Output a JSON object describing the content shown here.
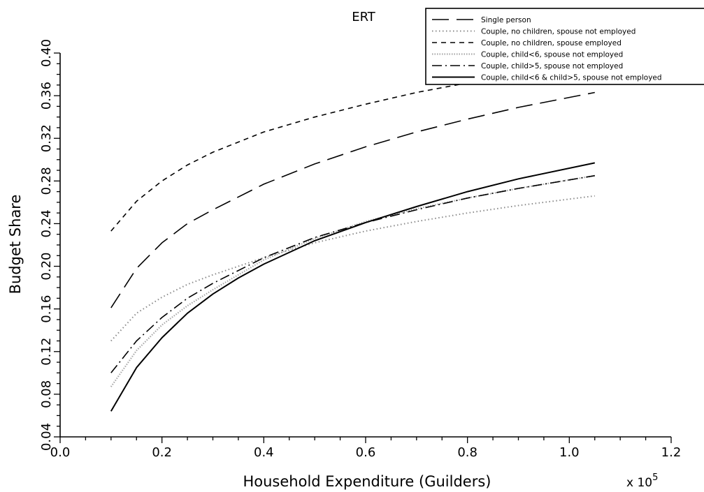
{
  "chart_data": {
    "type": "line",
    "title": "ERT",
    "xlabel": "Household Expenditure (Guilders)",
    "ylabel": "Budget Share",
    "x_multiplier": "x 10",
    "x_multiplier_exp": "5",
    "xlim": [
      0,
      1.2
    ],
    "ylim": [
      0.04,
      0.4
    ],
    "x_ticks": [
      "0.0",
      "0.2",
      "0.4",
      "0.6",
      "0.8",
      "1.0",
      "1.2"
    ],
    "y_ticks": [
      "0.04",
      "0.08",
      "0.12",
      "0.16",
      "0.20",
      "0.24",
      "0.28",
      "0.32",
      "0.36",
      "0.40"
    ],
    "grid": false,
    "legend_position": "top-right",
    "series": [
      {
        "name": "Single person",
        "style": "longdash",
        "x": [
          0.1,
          0.15,
          0.2,
          0.25,
          0.3,
          0.4,
          0.5,
          0.6,
          0.7,
          0.8,
          0.9,
          1.05
        ],
        "y": [
          0.161,
          0.198,
          0.222,
          0.24,
          0.253,
          0.277,
          0.296,
          0.312,
          0.326,
          0.338,
          0.349,
          0.363
        ]
      },
      {
        "name": "Couple, no children, spouse not employed",
        "style": "dotted",
        "x": [
          0.1,
          0.15,
          0.2,
          0.25,
          0.3,
          0.4,
          0.5,
          0.6,
          0.7,
          0.8,
          0.9,
          1.05
        ],
        "y": [
          0.13,
          0.156,
          0.171,
          0.183,
          0.192,
          0.208,
          0.222,
          0.233,
          0.242,
          0.25,
          0.257,
          0.266
        ]
      },
      {
        "name": "Couple, no children, spouse employed",
        "style": "shortdash",
        "x": [
          0.1,
          0.15,
          0.2,
          0.25,
          0.3,
          0.4,
          0.5,
          0.6,
          0.7,
          0.8
        ],
        "y": [
          0.233,
          0.261,
          0.28,
          0.295,
          0.307,
          0.326,
          0.34,
          0.352,
          0.363,
          0.372
        ]
      },
      {
        "name": "Couple, child<6, spouse not employed",
        "style": "densedot",
        "x": [
          0.1,
          0.15,
          0.2,
          0.25,
          0.3,
          0.4,
          0.5,
          0.6,
          0.7,
          0.8,
          0.9,
          1.05
        ],
        "y": [
          0.087,
          0.121,
          0.145,
          0.163,
          0.178,
          0.206,
          0.226,
          0.242,
          0.254,
          0.264,
          0.273,
          0.285
        ]
      },
      {
        "name": "Couple, child>5, spouse not employed",
        "style": "dashdot",
        "x": [
          0.1,
          0.15,
          0.2,
          0.25,
          0.3,
          0.4,
          0.5,
          0.6,
          0.7,
          0.8,
          0.9,
          1.05
        ],
        "y": [
          0.1,
          0.13,
          0.152,
          0.17,
          0.184,
          0.208,
          0.227,
          0.241,
          0.253,
          0.264,
          0.273,
          0.285
        ]
      },
      {
        "name": "Couple, child<6 & child>5, spouse not employed",
        "style": "solid",
        "x": [
          0.1,
          0.15,
          0.2,
          0.25,
          0.3,
          0.35,
          0.4,
          0.5,
          0.6,
          0.7,
          0.8,
          0.9,
          1.05
        ],
        "y": [
          0.064,
          0.105,
          0.133,
          0.156,
          0.174,
          0.189,
          0.202,
          0.224,
          0.241,
          0.256,
          0.27,
          0.282,
          0.297
        ]
      }
    ]
  }
}
